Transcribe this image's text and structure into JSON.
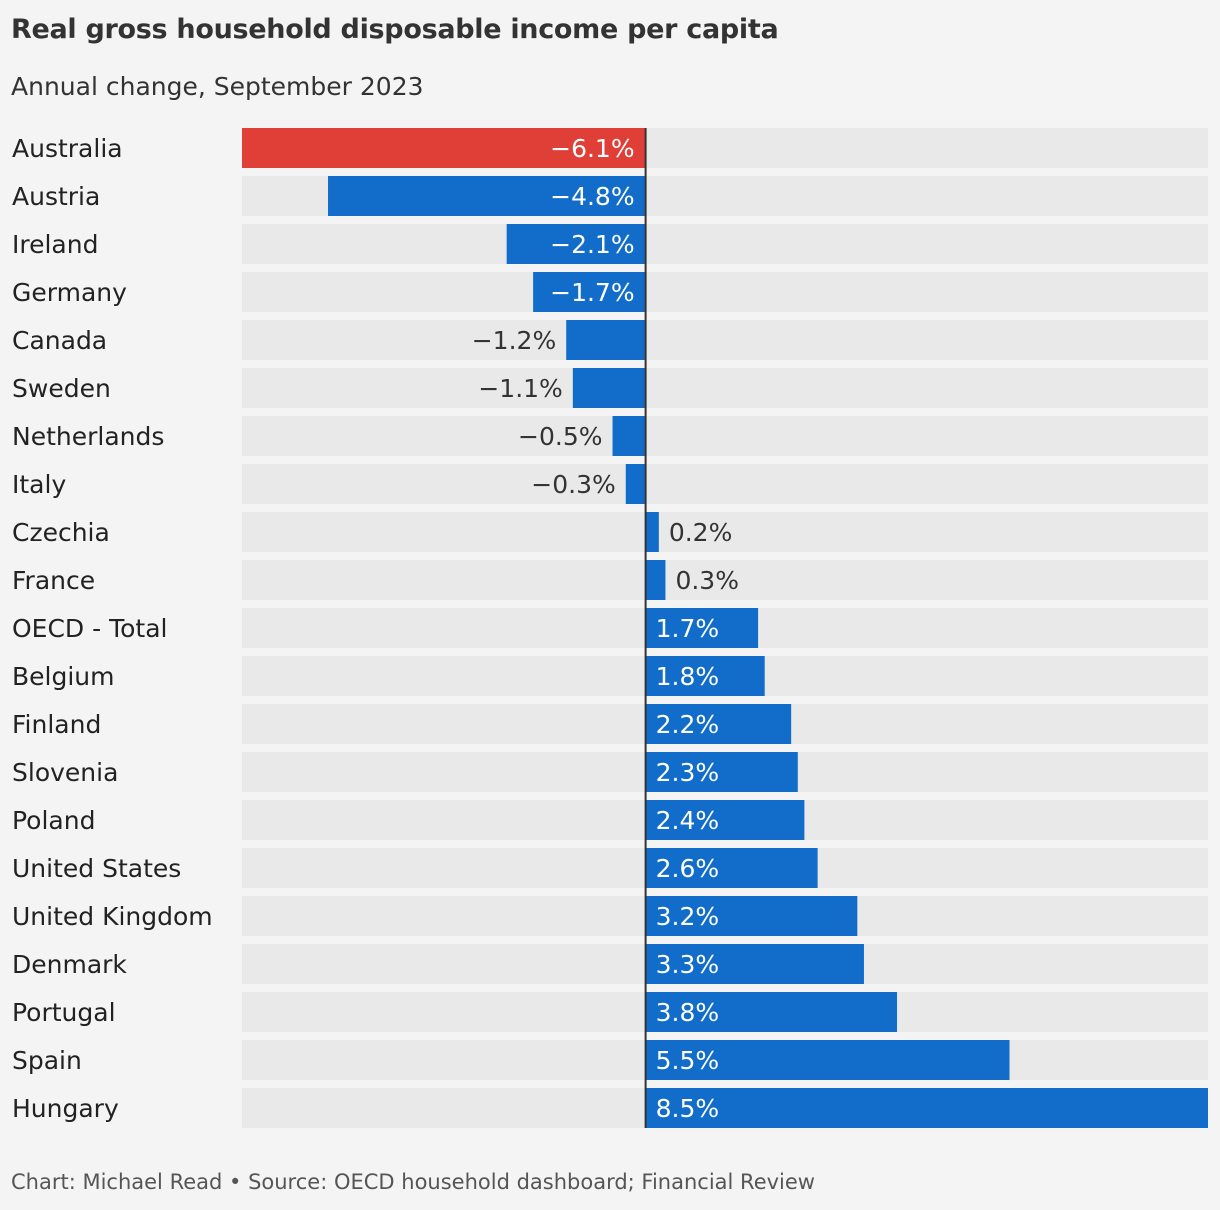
{
  "chart_data": {
    "type": "bar",
    "orientation": "horizontal",
    "title": "Real gross household disposable income per capita",
    "subtitle": "Annual change, September 2023",
    "categories": [
      "Australia",
      "Austria",
      "Ireland",
      "Germany",
      "Canada",
      "Sweden",
      "Netherlands",
      "Italy",
      "Czechia",
      "France",
      "OECD - Total",
      "Belgium",
      "Finland",
      "Slovenia",
      "Poland",
      "United States",
      "United Kingdom",
      "Denmark",
      "Portugal",
      "Spain",
      "Hungary"
    ],
    "values": [
      -6.1,
      -4.8,
      -2.1,
      -1.7,
      -1.2,
      -1.1,
      -0.5,
      -0.3,
      0.2,
      0.3,
      1.7,
      1.8,
      2.2,
      2.3,
      2.4,
      2.6,
      3.2,
      3.3,
      3.8,
      5.5,
      8.5
    ],
    "value_labels": [
      "−6.1%",
      "−4.8%",
      "−2.1%",
      "−1.7%",
      "−1.2%",
      "−1.1%",
      "−0.5%",
      "−0.3%",
      "0.2%",
      "0.3%",
      "1.7%",
      "1.8%",
      "2.2%",
      "2.3%",
      "2.4%",
      "2.6%",
      "3.2%",
      "3.3%",
      "3.8%",
      "5.5%",
      "8.5%"
    ],
    "xlim": [
      -6.1,
      8.5
    ],
    "unit": "%",
    "highlight_category": "Australia",
    "colors": {
      "bar": "#116dc9",
      "highlight": "#e03f37",
      "track": "#e9e9e9",
      "zero_line": "#333333",
      "background": "#f4f4f4"
    },
    "grid": false,
    "legend": "none"
  },
  "footer": "Chart: Michael Read • Source: OECD household dashboard; Financial Review"
}
